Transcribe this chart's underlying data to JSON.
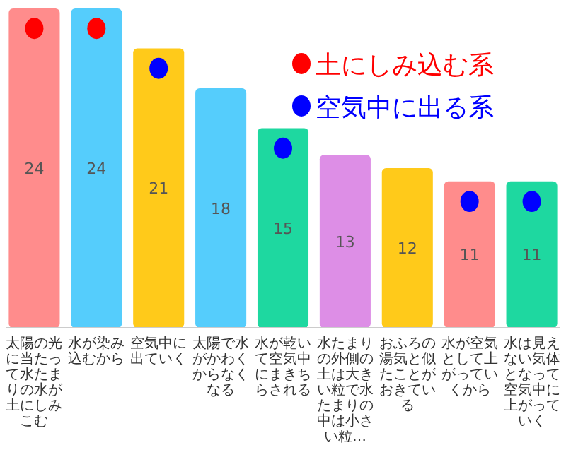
{
  "chart_data": {
    "type": "bar",
    "categories": [
      "太陽の光に当たって水たまりの水が土にしみこむ",
      "水が染み込むから",
      "空気中に出ていく",
      "太陽で水がかわくからなくなる",
      "水が乾いて空気中にまきちらされる",
      "水たまりの外側の土は大きい粒で水たまりの中は小さい粒…",
      "おふろの湯気と似たことがおきている",
      "水が空気として上がっていくから",
      "水は見えない気体となって空気中に上がっていく"
    ],
    "series": [
      {
        "colors": [
          "#ff8c8c",
          "#55cdfc",
          "#ffca1a",
          "#55cdfc",
          "#1ed8a0",
          "#dd8ee6",
          "#ffca1a",
          "#ff8c8c",
          "#1ed8a0"
        ],
        "values": [
          24,
          24,
          21,
          18,
          15,
          13,
          12,
          11,
          11
        ],
        "value_labels": [
          "24",
          "24",
          "21",
          "18",
          "15",
          "13",
          "12",
          "11",
          "11"
        ]
      },
      {
        "type": "scatter",
        "name": "土にしみ込む系",
        "color": "#ff0000",
        "values": [
          22.5,
          22.5,
          null,
          null,
          null,
          null,
          null,
          null,
          null
        ]
      },
      {
        "type": "scatter",
        "name": "空気中に出る系",
        "color": "#0000ff",
        "values": [
          null,
          null,
          19.5,
          null,
          13.5,
          null,
          null,
          9.5,
          9.5
        ]
      }
    ],
    "legend": "top right",
    "marker": "circle"
  }
}
